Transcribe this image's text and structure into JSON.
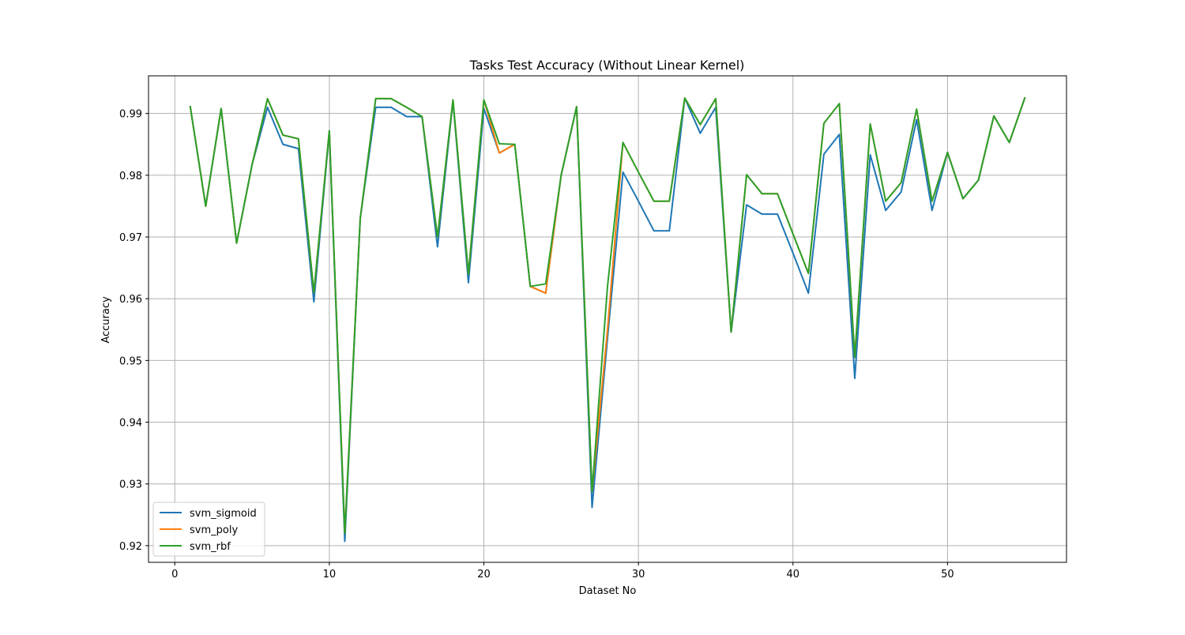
{
  "chart_data": {
    "type": "line",
    "title": "Tasks Test Accuracy (Without Linear Kernel)",
    "xlabel": "Dataset No",
    "ylabel": "Accuracy",
    "xlim": [
      -1.7,
      57.7
    ],
    "ylim": [
      0.9173,
      0.9961
    ],
    "xticks": [
      0,
      10,
      20,
      30,
      40,
      50
    ],
    "yticks": [
      0.92,
      0.93,
      0.94,
      0.95,
      0.96,
      0.97,
      0.98,
      0.99
    ],
    "grid": true,
    "legend_position": "lower-left",
    "x": [
      1,
      2,
      3,
      4,
      5,
      6,
      7,
      8,
      9,
      10,
      11,
      12,
      13,
      14,
      15,
      16,
      17,
      18,
      19,
      20,
      21,
      22,
      23,
      24,
      25,
      26,
      27,
      28,
      29,
      30,
      31,
      32,
      33,
      34,
      35,
      36,
      37,
      38,
      39,
      40,
      41,
      42,
      43,
      44,
      45,
      46,
      47,
      48,
      49,
      50,
      51,
      52,
      53,
      54,
      55
    ],
    "series": [
      {
        "name": "svm_sigmoid",
        "color": "#1f77b4",
        "values": [
          0.9911,
          0.975,
          0.9908,
          0.969,
          0.9817,
          0.991,
          0.985,
          0.9843,
          0.9595,
          0.987,
          0.9207,
          0.973,
          0.991,
          0.991,
          0.9895,
          0.9895,
          0.9684,
          0.992,
          0.9626,
          0.9908,
          0.9836,
          0.985,
          0.962,
          0.9609,
          0.98,
          0.9911,
          0.9262,
          0.9536,
          0.9805,
          0.9758,
          0.971,
          0.971,
          0.9925,
          0.9868,
          0.991,
          0.9546,
          0.9752,
          0.9737,
          0.9737,
          0.9674,
          0.9609,
          0.9834,
          0.9866,
          0.9471,
          0.9833,
          0.9743,
          0.9773,
          0.989,
          0.9743,
          0.9837,
          0.9762,
          0.9792,
          0.9896,
          0.9853,
          0.9925
        ]
      },
      {
        "name": "svm_poly",
        "color": "#ff7f0e",
        "values": [
          0.9911,
          0.975,
          0.9908,
          0.969,
          0.9817,
          0.9924,
          0.9865,
          0.9859,
          0.961,
          0.9872,
          0.922,
          0.973,
          0.9924,
          0.9924,
          0.991,
          0.9895,
          0.97,
          0.9922,
          0.964,
          0.9922,
          0.9836,
          0.985,
          0.962,
          0.9609,
          0.98,
          0.9911,
          0.9288,
          0.955,
          0.9853,
          0.9805,
          0.9758,
          0.9758,
          0.9925,
          0.9882,
          0.9924,
          0.9546,
          0.9801,
          0.977,
          0.977,
          0.9705,
          0.9641,
          0.9884,
          0.9916,
          0.9505,
          0.9883,
          0.9758,
          0.9788,
          0.9907,
          0.9758,
          0.9837,
          0.9762,
          0.9792,
          0.9896,
          0.9853,
          0.9925
        ]
      },
      {
        "name": "svm_rbf",
        "color": "#2ca02c",
        "values": [
          0.9911,
          0.975,
          0.9908,
          0.969,
          0.9817,
          0.9924,
          0.9865,
          0.9859,
          0.961,
          0.9872,
          0.922,
          0.973,
          0.9924,
          0.9924,
          0.991,
          0.9895,
          0.97,
          0.9922,
          0.964,
          0.9922,
          0.9851,
          0.985,
          0.962,
          0.9624,
          0.98,
          0.9911,
          0.9288,
          0.962,
          0.9853,
          0.9805,
          0.9758,
          0.9758,
          0.9925,
          0.9882,
          0.9924,
          0.9546,
          0.9801,
          0.977,
          0.977,
          0.9705,
          0.9641,
          0.9884,
          0.9916,
          0.9505,
          0.9883,
          0.9758,
          0.9788,
          0.9907,
          0.9758,
          0.9837,
          0.9762,
          0.9792,
          0.9896,
          0.9853,
          0.9925
        ]
      }
    ]
  }
}
